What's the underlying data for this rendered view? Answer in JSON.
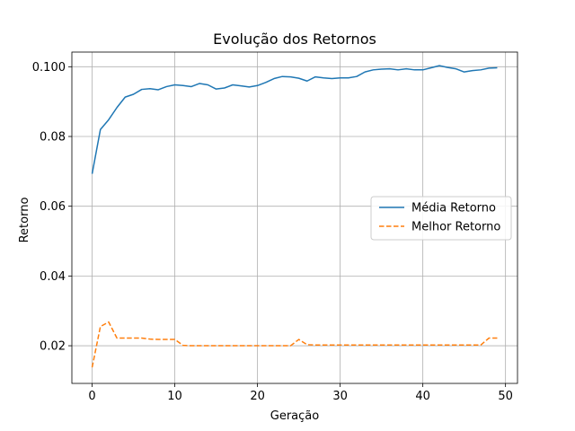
{
  "chart_data": {
    "type": "line",
    "title": "Evolução dos Retornos",
    "xlabel": "Geração",
    "ylabel": "Retorno",
    "xlim": [
      -2.45,
      51.45
    ],
    "ylim": [
      0.0092,
      0.1042
    ],
    "xticks": [
      0,
      10,
      20,
      30,
      40,
      50
    ],
    "xtick_labels": [
      "0",
      "10",
      "20",
      "30",
      "40",
      "50"
    ],
    "yticks": [
      0.02,
      0.04,
      0.06,
      0.08,
      0.1
    ],
    "ytick_labels": [
      "0.02",
      "0.04",
      "0.06",
      "0.08",
      "0.100"
    ],
    "grid": true,
    "legend_position": "center-right",
    "x": [
      0,
      1,
      2,
      3,
      4,
      5,
      6,
      7,
      8,
      9,
      10,
      11,
      12,
      13,
      14,
      15,
      16,
      17,
      18,
      19,
      20,
      21,
      22,
      23,
      24,
      25,
      26,
      27,
      28,
      29,
      30,
      31,
      32,
      33,
      34,
      35,
      36,
      37,
      38,
      39,
      40,
      41,
      42,
      43,
      44,
      45,
      46,
      47,
      48,
      49
    ],
    "series": [
      {
        "name": "Média Retorno",
        "color": "#1f77b4",
        "style": "solid",
        "values": [
          0.0693,
          0.082,
          0.0848,
          0.0883,
          0.0913,
          0.0921,
          0.0935,
          0.0937,
          0.0934,
          0.0943,
          0.0948,
          0.0946,
          0.0943,
          0.0952,
          0.0948,
          0.0936,
          0.0939,
          0.0948,
          0.0945,
          0.0942,
          0.0946,
          0.0955,
          0.0966,
          0.0972,
          0.0971,
          0.0967,
          0.0959,
          0.0971,
          0.0968,
          0.0966,
          0.0968,
          0.0968,
          0.0972,
          0.0985,
          0.0991,
          0.0993,
          0.0994,
          0.0991,
          0.0994,
          0.0991,
          0.0991,
          0.0997,
          0.1003,
          0.0998,
          0.0994,
          0.0985,
          0.0989,
          0.0991,
          0.0996,
          0.0997
        ]
      },
      {
        "name": "Melhor Retorno",
        "color": "#ff7f0e",
        "style": "dashed",
        "values": [
          0.0138,
          0.0255,
          0.0268,
          0.0222,
          0.0222,
          0.0222,
          0.0222,
          0.0219,
          0.0218,
          0.0218,
          0.0218,
          0.0201,
          0.02,
          0.02,
          0.02,
          0.02,
          0.02,
          0.02,
          0.02,
          0.02,
          0.02,
          0.02,
          0.02,
          0.02,
          0.02,
          0.0218,
          0.0203,
          0.0202,
          0.0202,
          0.0202,
          0.0202,
          0.0202,
          0.0202,
          0.0202,
          0.0202,
          0.0202,
          0.0202,
          0.0202,
          0.0202,
          0.0202,
          0.0202,
          0.0202,
          0.0202,
          0.0202,
          0.0202,
          0.0202,
          0.0202,
          0.0202,
          0.0222,
          0.0222
        ]
      }
    ]
  }
}
